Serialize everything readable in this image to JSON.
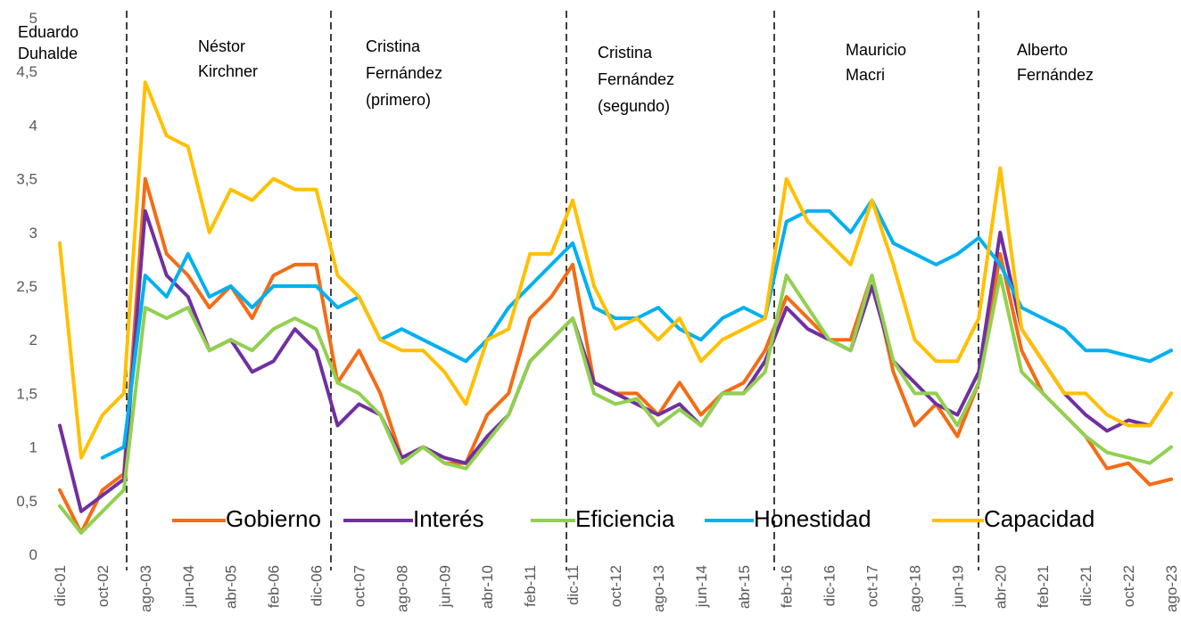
{
  "chart_data": {
    "type": "line",
    "categories": [
      "dic-01",
      null,
      "oct-02",
      null,
      "ago-03",
      null,
      "jun-04",
      null,
      "abr-05",
      null,
      "feb-06",
      null,
      "dic-06",
      null,
      "oct-07",
      null,
      "ago-08",
      null,
      "jun-09",
      null,
      "abr-10",
      null,
      "feb-11",
      null,
      "dic-11",
      null,
      "oct-12",
      null,
      "ago-13",
      null,
      "jun-14",
      null,
      "abr-15",
      null,
      "feb-16",
      null,
      "dic-16",
      null,
      "oct-17",
      null,
      "ago-18",
      null,
      "jun-19",
      null,
      "abr-20",
      null,
      "feb-21",
      null,
      "dic-21",
      null,
      "oct-22",
      null,
      "ago-23"
    ],
    "ylim": [
      0,
      5
    ],
    "yticks": [
      0,
      {
        "value": 0.5,
        "label": "0,5"
      },
      1,
      {
        "value": 1.5,
        "label": "1,5"
      },
      2,
      {
        "value": 2.5,
        "label": "2,5"
      },
      3,
      {
        "value": 3.5,
        "label": "3,5"
      },
      4,
      {
        "value": 4.5,
        "label": "4,5"
      },
      5
    ],
    "grid": false,
    "legend": "bottom",
    "annotations": [
      [
        "Eduardo",
        "Duhalde"
      ],
      [
        "Néstor",
        "Kirchner"
      ],
      [
        "Cristina",
        "Fernández",
        "(primero)"
      ],
      [
        "Cristina",
        "Fernández",
        "(segundo)"
      ],
      [
        "Mauricio",
        "Macri"
      ],
      [
        "Alberto",
        "Fernández"
      ]
    ],
    "series": [
      {
        "name": "Gobierno",
        "color": "#f36c16",
        "values": [
          0.6,
          0.2,
          0.6,
          0.75,
          3.5,
          2.8,
          2.6,
          2.3,
          2.5,
          2.2,
          2.6,
          2.7,
          2.7,
          1.6,
          1.9,
          1.5,
          0.9,
          1.0,
          0.85,
          0.85,
          1.3,
          1.5,
          2.2,
          2.4,
          2.7,
          1.6,
          1.5,
          1.5,
          1.3,
          1.6,
          1.3,
          1.5,
          1.6,
          1.9,
          2.4,
          2.2,
          2.0,
          2.0,
          2.6,
          1.7,
          1.2,
          1.4,
          1.1,
          1.6,
          2.8,
          1.9,
          1.5,
          1.3,
          1.1,
          0.8,
          0.85,
          0.65,
          0.7
        ]
      },
      {
        "name": "Interés",
        "color": "#7030a0",
        "values": [
          1.2,
          0.4,
          0.55,
          0.7,
          3.2,
          2.6,
          2.4,
          1.9,
          2.0,
          1.7,
          1.8,
          2.1,
          1.9,
          1.2,
          1.4,
          1.3,
          0.9,
          1.0,
          0.9,
          0.85,
          1.1,
          1.3,
          1.8,
          2.0,
          2.2,
          1.6,
          1.5,
          1.4,
          1.3,
          1.4,
          1.2,
          1.5,
          1.5,
          1.8,
          2.3,
          2.1,
          2.0,
          1.9,
          2.5,
          1.8,
          1.6,
          1.4,
          1.3,
          1.7,
          3.0,
          2.1,
          1.8,
          1.5,
          1.3,
          1.15,
          1.25,
          1.2,
          1.5
        ]
      },
      {
        "name": "Eficiencia",
        "color": "#92d050",
        "values": [
          0.45,
          0.2,
          0.4,
          0.6,
          2.3,
          2.2,
          2.3,
          1.9,
          2.0,
          1.9,
          2.1,
          2.2,
          2.1,
          1.6,
          1.5,
          1.3,
          0.85,
          1.0,
          0.85,
          0.8,
          1.05,
          1.3,
          1.8,
          2.0,
          2.2,
          1.5,
          1.4,
          1.45,
          1.2,
          1.35,
          1.2,
          1.5,
          1.5,
          1.7,
          2.6,
          2.3,
          2.0,
          1.9,
          2.6,
          1.8,
          1.5,
          1.5,
          1.2,
          1.6,
          2.6,
          1.7,
          1.5,
          1.3,
          1.1,
          0.95,
          0.9,
          0.85,
          1.0
        ]
      },
      {
        "name": "Honestidad",
        "color": "#00b0f0",
        "values": [
          null,
          null,
          0.9,
          1.0,
          2.6,
          2.4,
          2.8,
          2.4,
          2.5,
          2.3,
          2.5,
          2.5,
          2.5,
          2.3,
          2.4,
          2.0,
          2.1,
          2.0,
          1.9,
          1.8,
          2.0,
          2.3,
          2.5,
          2.7,
          2.9,
          2.3,
          2.2,
          2.2,
          2.3,
          2.1,
          2.0,
          2.2,
          2.3,
          2.2,
          3.1,
          3.2,
          3.2,
          3.0,
          3.3,
          2.9,
          2.8,
          2.7,
          2.8,
          2.95,
          2.7,
          2.3,
          2.2,
          2.1,
          1.9,
          1.9,
          1.85,
          1.8,
          1.9
        ]
      },
      {
        "name": "Capacidad",
        "color": "#ffc000",
        "values": [
          2.9,
          0.9,
          1.3,
          1.5,
          4.4,
          3.9,
          3.8,
          3.0,
          3.4,
          3.3,
          3.5,
          3.4,
          3.4,
          2.6,
          2.4,
          2.0,
          1.9,
          1.9,
          1.7,
          1.4,
          2.0,
          2.1,
          2.8,
          2.8,
          3.3,
          2.5,
          2.1,
          2.2,
          2.0,
          2.2,
          1.8,
          2.0,
          2.1,
          2.2,
          3.5,
          3.1,
          2.9,
          2.7,
          3.3,
          2.7,
          2.0,
          1.8,
          1.8,
          2.2,
          3.6,
          2.1,
          1.8,
          1.5,
          1.5,
          1.3,
          1.2,
          1.2,
          1.5
        ]
      }
    ]
  }
}
